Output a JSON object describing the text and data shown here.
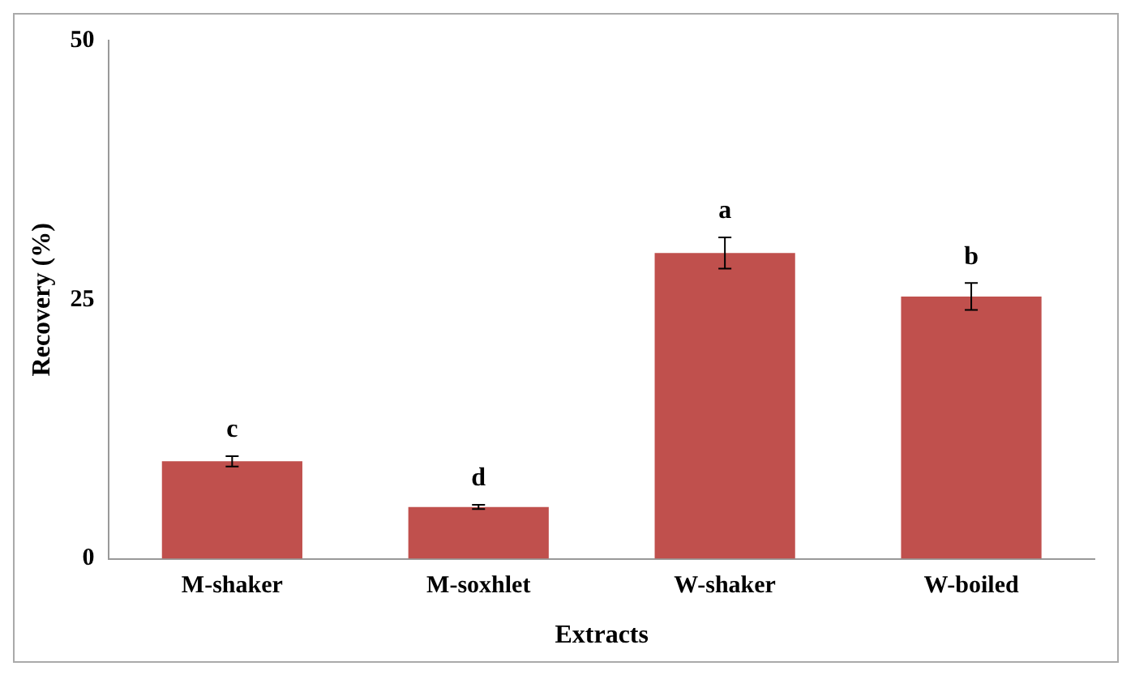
{
  "chart_data": {
    "type": "bar",
    "xlabel": "Extracts",
    "ylabel": "Recovery (%)",
    "categories": [
      "M-shaker",
      "M-soxhlet",
      "W-shaker",
      "W-boiled"
    ],
    "values": [
      9.4,
      5.0,
      29.5,
      25.3
    ],
    "errors": [
      0.5,
      0.2,
      1.5,
      1.3
    ],
    "color": "#c0504d",
    "ylim": [
      0,
      50
    ],
    "yticks": [
      0,
      25,
      50
    ],
    "grid": false,
    "legend": false,
    "annotations": [
      "c",
      "d",
      "a",
      "b"
    ]
  }
}
